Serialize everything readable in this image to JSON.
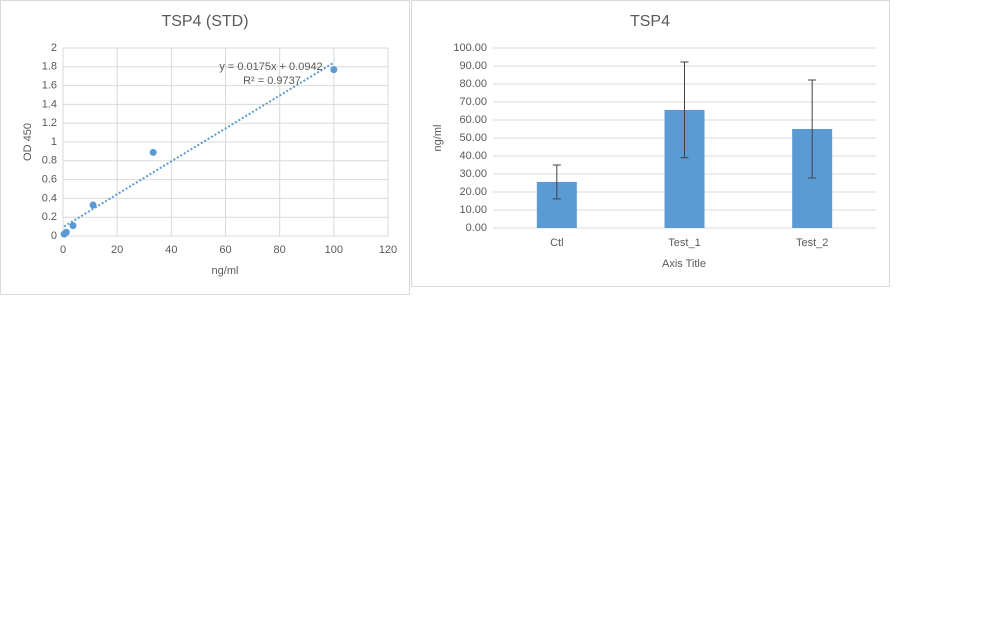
{
  "chart_data": [
    {
      "type": "scatter",
      "title": "TSP4 (STD)",
      "x_label": "ng/ml",
      "y_label": "OD 450",
      "x": [
        0.41,
        1.23,
        3.7,
        11.1,
        33.3,
        100
      ],
      "y": [
        0.02,
        0.04,
        0.11,
        0.33,
        0.89,
        1.77
      ],
      "color": "#5b9bd5",
      "trendline": {
        "slope": 0.0175,
        "intercept": 0.0942,
        "equation": "y = 0.0175x + 0.0942",
        "r2": "R² = 0.9737"
      },
      "xlim": [
        0,
        120
      ],
      "xticks": [
        0,
        20,
        40,
        60,
        80,
        100,
        120
      ],
      "ylim": [
        0,
        2
      ],
      "yticks": [
        0,
        0.2,
        0.4,
        0.6,
        0.8,
        1,
        1.2,
        1.4,
        1.6,
        1.8,
        2
      ],
      "grid": true
    },
    {
      "type": "bar",
      "title": "TSP4",
      "x_label": "Axis Title",
      "y_label": "ng/ml",
      "categories": [
        "Ctl",
        "Test_1",
        "Test_2"
      ],
      "values": [
        25.6,
        65.6,
        55.0
      ],
      "errors": [
        9.4,
        26.6,
        27.2
      ],
      "color": "#5b9bd5",
      "ylim": [
        0,
        100
      ],
      "yticks": [
        {
          "value": 0,
          "label": "0.00"
        },
        {
          "value": 10,
          "label": "10.00"
        },
        {
          "value": 20,
          "label": "20.00"
        },
        {
          "value": 30,
          "label": "30.00"
        },
        {
          "value": 40,
          "label": "40.00"
        },
        {
          "value": 50,
          "label": "50.00"
        },
        {
          "value": 60,
          "label": "60.00"
        },
        {
          "value": 70,
          "label": "70.00"
        },
        {
          "value": 80,
          "label": "80.00"
        },
        {
          "value": 90,
          "label": "90.00"
        },
        {
          "value": 100,
          "label": "100.00"
        }
      ],
      "grid": true
    }
  ]
}
